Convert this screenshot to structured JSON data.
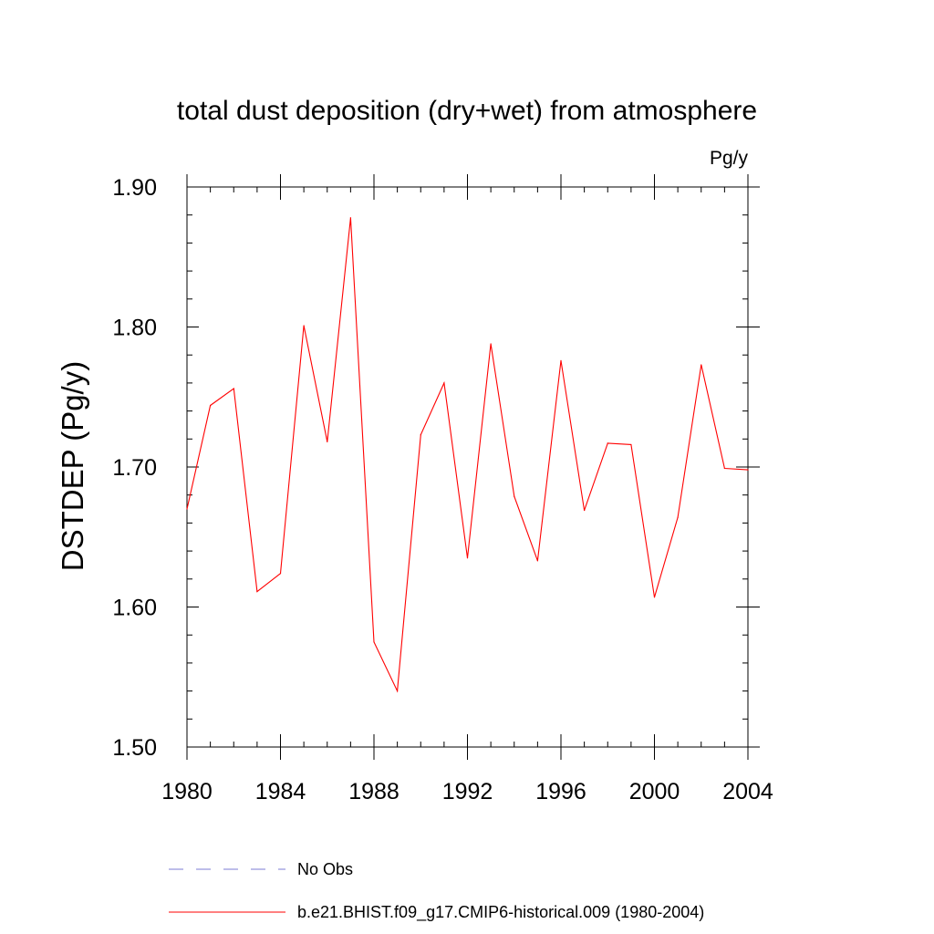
{
  "chart_data": {
    "type": "line",
    "title": "total dust deposition (dry+wet) from atmosphere",
    "units_label": "Pg/y",
    "ylabel": "DSTDEP  (Pg/y)",
    "xlabel": "",
    "xlim": [
      1980,
      2004
    ],
    "ylim": [
      1.5,
      1.9
    ],
    "x_ticks": [
      1980,
      1984,
      1988,
      1992,
      1996,
      2000,
      2004
    ],
    "x_tick_labels": [
      "1980",
      "1984",
      "1988",
      "1992",
      "1996",
      "2000",
      "2004"
    ],
    "y_ticks": [
      1.5,
      1.6,
      1.7,
      1.8,
      1.9
    ],
    "y_tick_labels": [
      "1.50",
      "1.60",
      "1.70",
      "1.80",
      "1.90"
    ],
    "series": [
      {
        "name": "b.e21.BHIST.f09_g17.CMIP6-historical.009 (1980-2004)",
        "color": "#ff0000",
        "style": "solid",
        "x": [
          1980,
          1981,
          1982,
          1983,
          1984,
          1985,
          1986,
          1987,
          1988,
          1989,
          1990,
          1991,
          1992,
          1993,
          1994,
          1995,
          1996,
          1997,
          1998,
          1999,
          2000,
          2001,
          2002,
          2003,
          2004
        ],
        "values": [
          1.67,
          1.744,
          1.756,
          1.611,
          1.624,
          1.801,
          1.718,
          1.878,
          1.575,
          1.54,
          1.723,
          1.76,
          1.635,
          1.788,
          1.679,
          1.633,
          1.776,
          1.669,
          1.717,
          1.716,
          1.607,
          1.664,
          1.773,
          1.699,
          1.698
        ]
      }
    ],
    "legend": [
      {
        "label": "No Obs",
        "color": "#7b7bd4",
        "style": "dashed"
      },
      {
        "label": "b.e21.BHIST.f09_g17.CMIP6-historical.009 (1980-2004)",
        "color": "#ff0000",
        "style": "solid"
      }
    ]
  }
}
